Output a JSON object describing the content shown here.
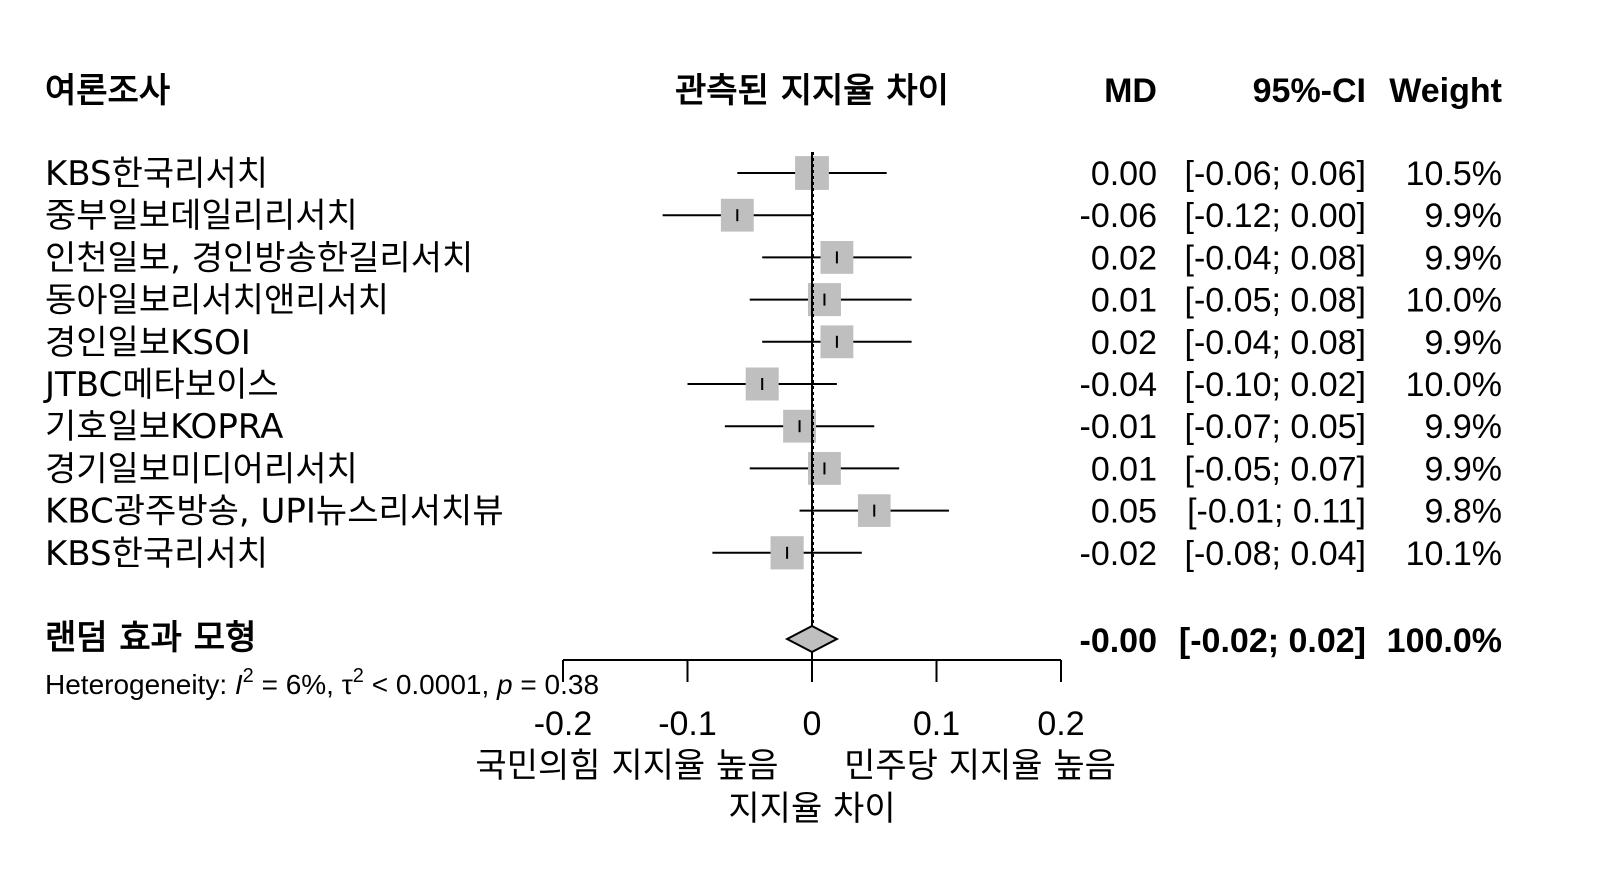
{
  "chart_data": {
    "type": "forest",
    "headers": {
      "study": "여론조사",
      "plot": "관측된 지지율 차이",
      "md": "MD",
      "ci": "95%-CI",
      "weight": "Weight"
    },
    "studies": [
      {
        "name": "KBS한국리서치",
        "md": 0.0,
        "lower": -0.06,
        "upper": 0.06,
        "md_text": "0.00",
        "ci_text": "[-0.06; 0.06]",
        "weight": 10.5,
        "weight_text": "10.5%"
      },
      {
        "name": "중부일보데일리리서치",
        "md": -0.06,
        "lower": -0.12,
        "upper": 0.0,
        "md_text": "-0.06",
        "ci_text": "[-0.12; 0.00]",
        "weight": 9.9,
        "weight_text": "9.9%"
      },
      {
        "name": "인천일보, 경인방송한길리서치",
        "md": 0.02,
        "lower": -0.04,
        "upper": 0.08,
        "md_text": "0.02",
        "ci_text": "[-0.04; 0.08]",
        "weight": 9.9,
        "weight_text": "9.9%"
      },
      {
        "name": "동아일보리서치앤리서치",
        "md": 0.01,
        "lower": -0.05,
        "upper": 0.08,
        "md_text": "0.01",
        "ci_text": "[-0.05; 0.08]",
        "weight": 10.0,
        "weight_text": "10.0%"
      },
      {
        "name": "경인일보KSOI",
        "md": 0.02,
        "lower": -0.04,
        "upper": 0.08,
        "md_text": "0.02",
        "ci_text": "[-0.04; 0.08]",
        "weight": 9.9,
        "weight_text": "9.9%"
      },
      {
        "name": "JTBC메타보이스",
        "md": -0.04,
        "lower": -0.1,
        "upper": 0.02,
        "md_text": "-0.04",
        "ci_text": "[-0.10; 0.02]",
        "weight": 10.0,
        "weight_text": "10.0%"
      },
      {
        "name": "기호일보KOPRA",
        "md": -0.01,
        "lower": -0.07,
        "upper": 0.05,
        "md_text": "-0.01",
        "ci_text": "[-0.07; 0.05]",
        "weight": 9.9,
        "weight_text": "9.9%"
      },
      {
        "name": "경기일보미디어리서치",
        "md": 0.01,
        "lower": -0.05,
        "upper": 0.07,
        "md_text": "0.01",
        "ci_text": "[-0.05; 0.07]",
        "weight": 9.9,
        "weight_text": "9.9%"
      },
      {
        "name": "KBC광주방송, UPI뉴스리서치뷰",
        "md": 0.05,
        "lower": -0.01,
        "upper": 0.11,
        "md_text": "0.05",
        "ci_text": "[-0.01; 0.11]",
        "weight": 9.8,
        "weight_text": "9.8%"
      },
      {
        "name": "KBS한국리서치",
        "md": -0.02,
        "lower": -0.08,
        "upper": 0.04,
        "md_text": "-0.02",
        "ci_text": "[-0.08; 0.04]",
        "weight": 10.1,
        "weight_text": "10.1%"
      }
    ],
    "pooled": {
      "name": "랜덤 효과 모형",
      "md": 0.0,
      "lower": -0.02,
      "upper": 0.02,
      "md_text": "-0.00",
      "ci_text": "[-0.02; 0.02]",
      "weight_text": "100.0%"
    },
    "heterogeneity": {
      "prefix": "Heterogeneity: ",
      "i_symbol": "I",
      "sup": "2",
      "i2_text": " = 6%, ",
      "tau_symbol": "τ",
      "tau2_text": " < 0.0001, ",
      "p_symbol": "p",
      "p_text": " = 0.38"
    },
    "x_axis": {
      "range": [
        -0.2,
        0.2
      ],
      "ticks": [
        -0.2,
        -0.1,
        0,
        0.1,
        0.2
      ],
      "tick_labels": [
        "-0.2",
        "-0.1",
        "0",
        "0.1",
        "0.2"
      ],
      "left_label": "국민의힘 지지율 높음",
      "right_label": "민주당 지지율 높음",
      "xlabel": "지지율 차이"
    },
    "colors": {
      "square": "#bfbfbf",
      "diamond": "#bfbfbf",
      "line": "#000000"
    }
  }
}
